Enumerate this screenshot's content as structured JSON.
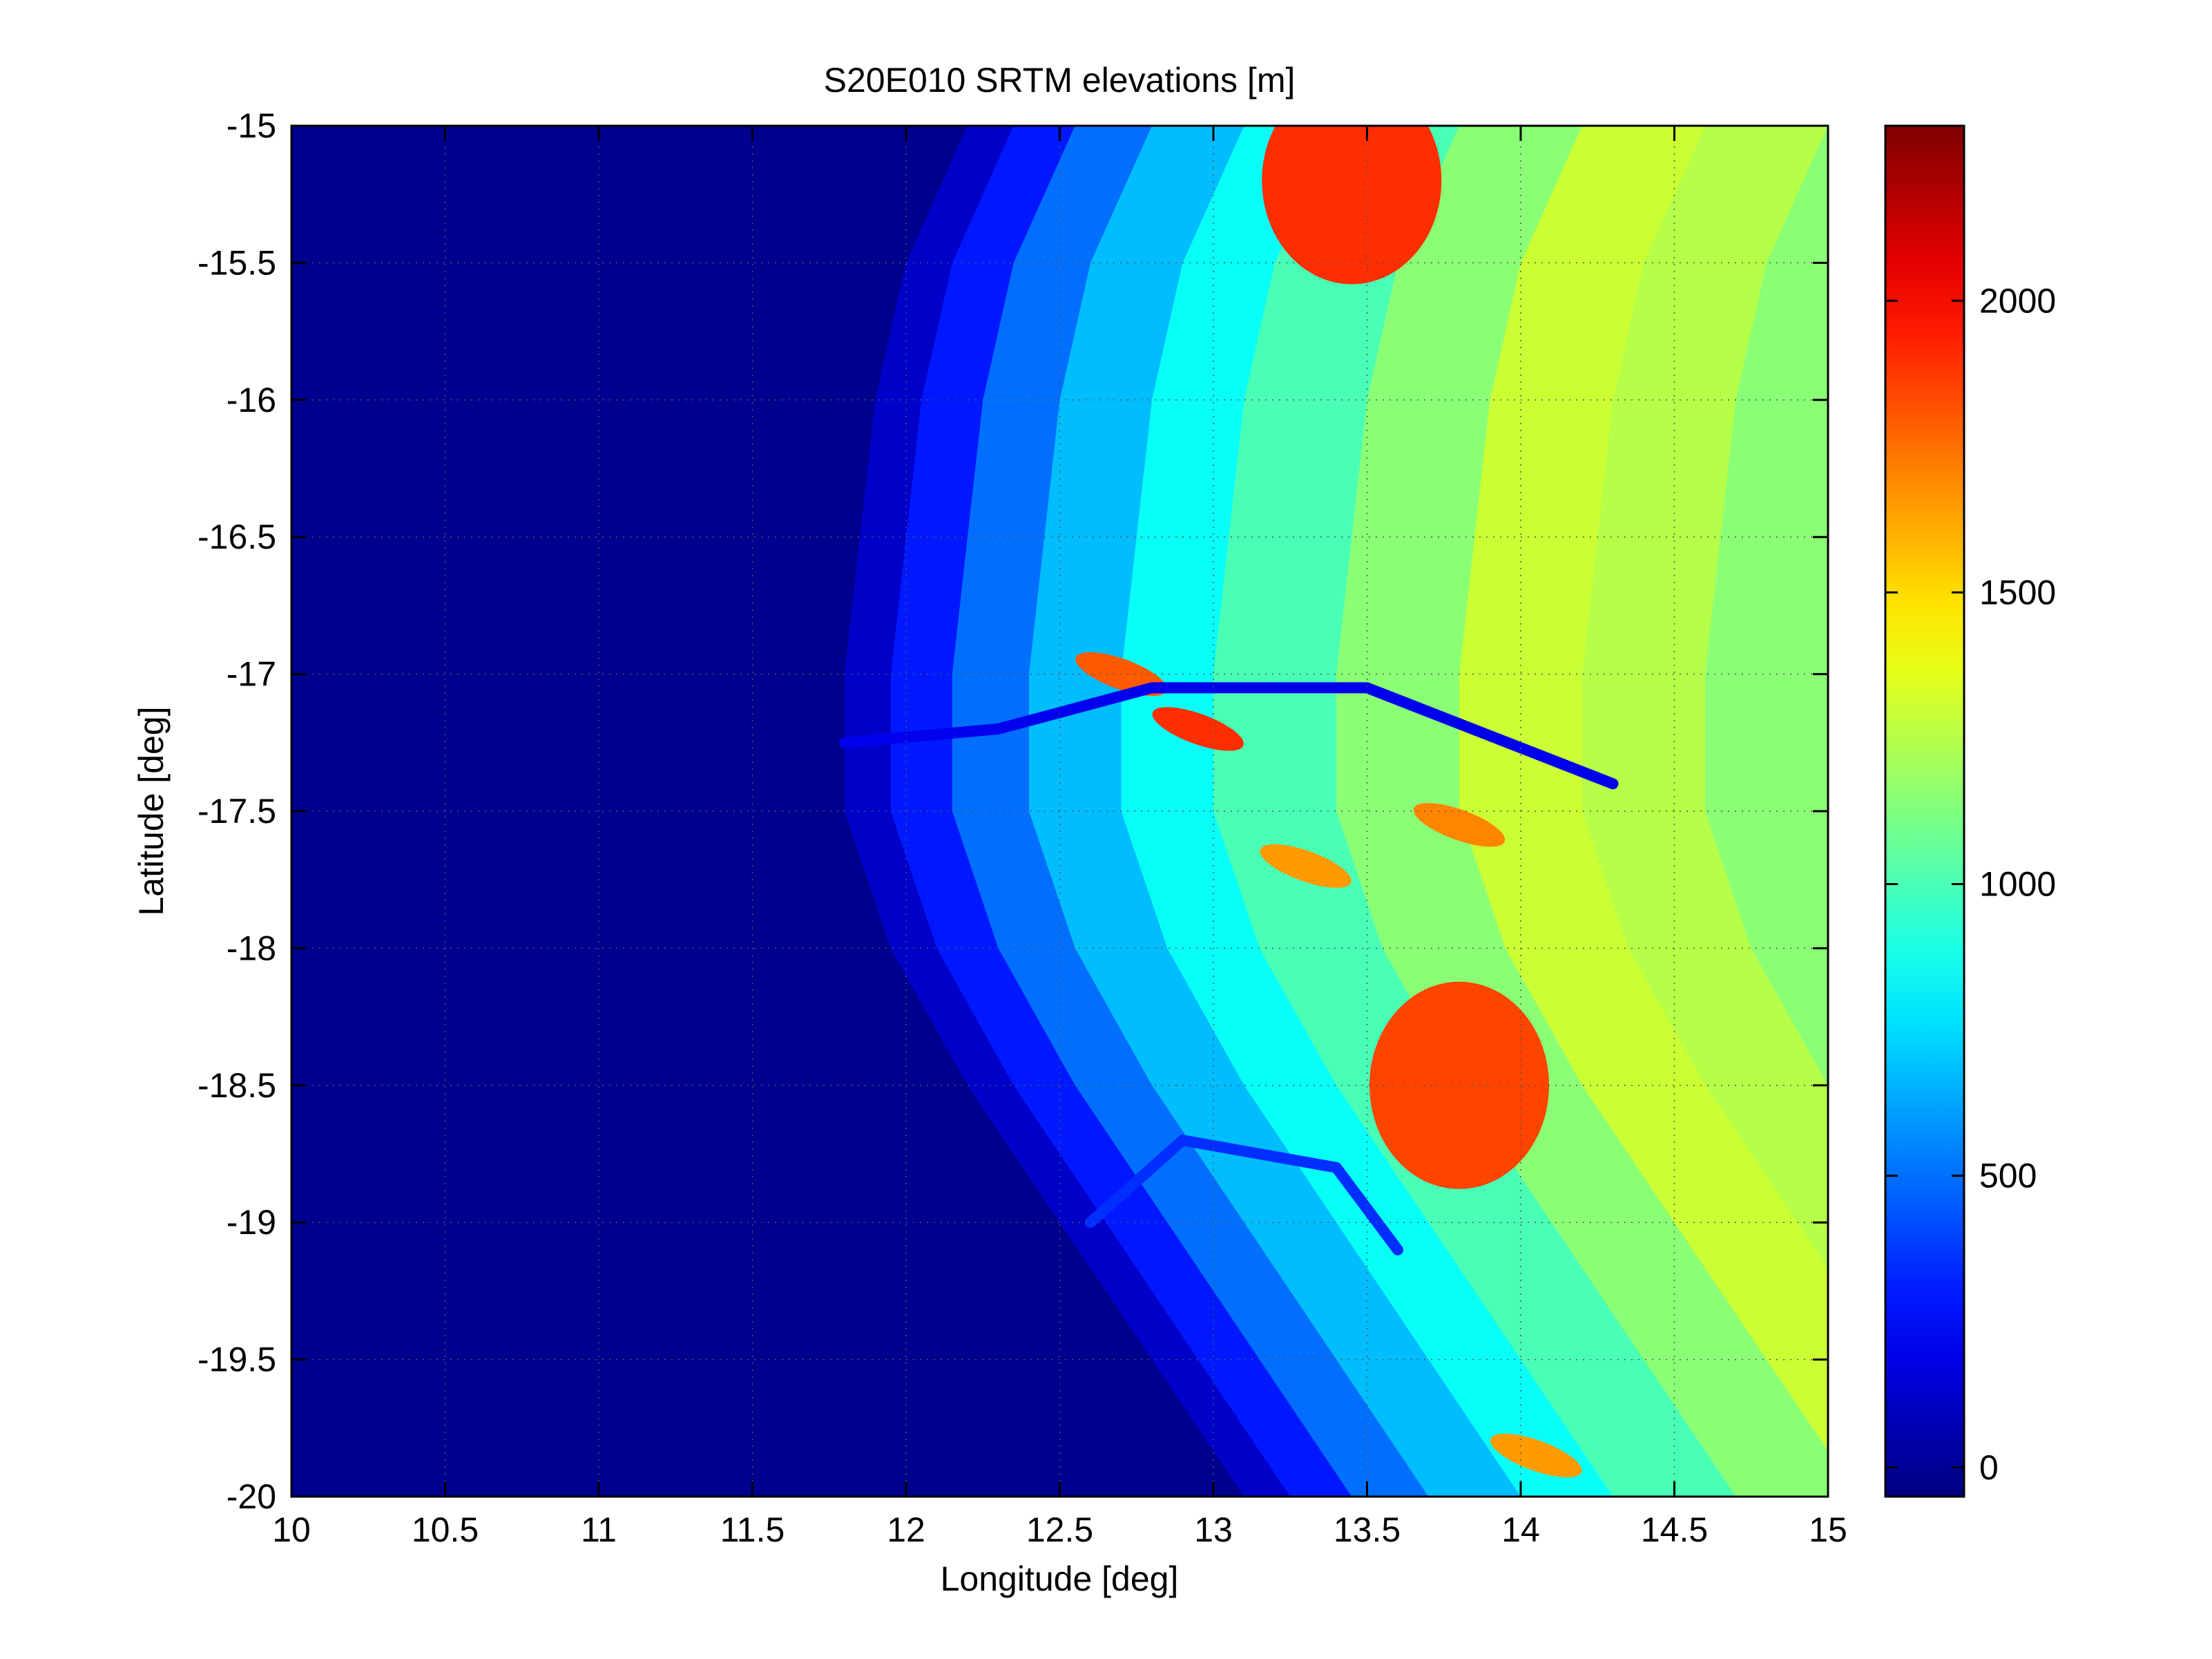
{
  "chart_data": {
    "type": "heatmap",
    "title": "S20E010 SRTM elevations [m]",
    "xlabel": "Longitude [deg]",
    "ylabel": "Latitude [deg]",
    "xlim": [
      10,
      15
    ],
    "ylim": [
      -20,
      -15
    ],
    "xticks": [
      10,
      10.5,
      11,
      11.5,
      12,
      12.5,
      13,
      13.5,
      14,
      14.5,
      15
    ],
    "xtick_labels": [
      "10",
      "10.5",
      "11",
      "11.5",
      "12",
      "12.5",
      "13",
      "13.5",
      "14",
      "14.5",
      "15"
    ],
    "yticks": [
      -15,
      -15.5,
      -16,
      -16.5,
      -17,
      -17.5,
      -18,
      -18.5,
      -19,
      -19.5,
      -20
    ],
    "ytick_labels": [
      "-15",
      "-15.5",
      "-16",
      "-16.5",
      "-17",
      "-17.5",
      "-18",
      "-18.5",
      "-19",
      "-19.5",
      "-20"
    ],
    "grid": true,
    "colormap": "jet",
    "colorbar": {
      "range": [
        -50,
        2300
      ],
      "ticks": [
        0,
        500,
        1000,
        1500,
        2000
      ],
      "tick_labels": [
        "0",
        "500",
        "1000",
        "1500",
        "2000"
      ]
    },
    "ocean_value": 0,
    "coastline": [
      {
        "lat": -15.0,
        "lon": 12.2
      },
      {
        "lat": -15.5,
        "lon": 12.0
      },
      {
        "lat": -16.0,
        "lon": 11.9
      },
      {
        "lat": -16.5,
        "lon": 11.85
      },
      {
        "lat": -17.0,
        "lon": 11.8
      },
      {
        "lat": -17.3,
        "lon": 11.8
      },
      {
        "lat": -17.5,
        "lon": 11.8
      },
      {
        "lat": -18.0,
        "lon": 11.95
      },
      {
        "lat": -18.5,
        "lon": 12.2
      },
      {
        "lat": -19.0,
        "lon": 12.5
      },
      {
        "lat": -19.5,
        "lon": 12.8
      },
      {
        "lat": -20.0,
        "lon": 13.1
      }
    ],
    "features": [
      {
        "type": "highland",
        "lon": 13.45,
        "lat": -15.2,
        "elev": 1900
      },
      {
        "type": "highland",
        "lon": 13.8,
        "lat": -18.5,
        "elev": 1850
      },
      {
        "type": "ridge",
        "lon": 12.7,
        "lat": -17.0,
        "elev": 1800
      },
      {
        "type": "ridge",
        "lon": 12.95,
        "lat": -17.2,
        "elev": 1900
      },
      {
        "type": "ridge",
        "lon": 13.3,
        "lat": -17.7,
        "elev": 1650
      },
      {
        "type": "ridge",
        "lon": 13.8,
        "lat": -17.55,
        "elev": 1700
      },
      {
        "type": "ridge",
        "lon": 14.05,
        "lat": -19.85,
        "elev": 1650
      },
      {
        "type": "river",
        "path": [
          [
            11.8,
            -17.25
          ],
          [
            12.3,
            -17.2
          ],
          [
            12.8,
            -17.05
          ],
          [
            13.5,
            -17.05
          ],
          [
            14.3,
            -17.4
          ]
        ],
        "elev": 200
      },
      {
        "type": "river",
        "path": [
          [
            12.6,
            -19.0
          ],
          [
            12.9,
            -18.7
          ],
          [
            13.4,
            -18.8
          ],
          [
            13.6,
            -19.1
          ]
        ],
        "elev": 350
      }
    ]
  }
}
